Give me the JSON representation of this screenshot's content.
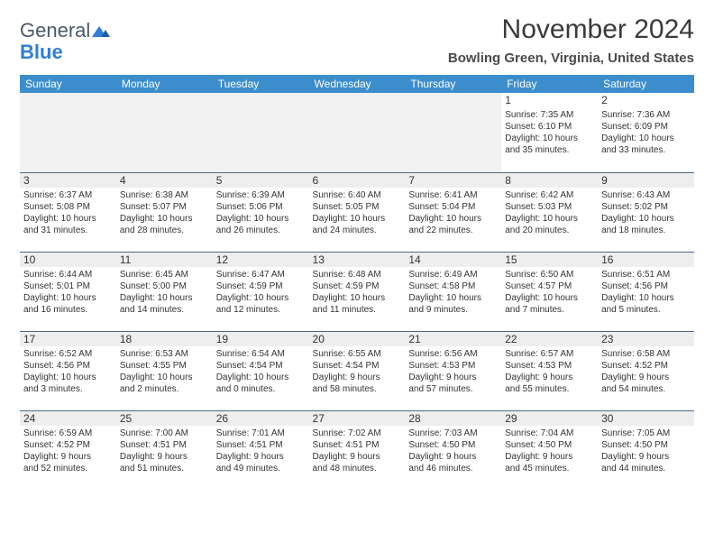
{
  "logo": {
    "word1": "General",
    "word2": "Blue"
  },
  "title": "November 2024",
  "location": "Bowling Green, Virginia, United States",
  "colors": {
    "header_bg": "#3c8dcc",
    "header_text": "#ffffff",
    "day_bg": "#eeeeee",
    "border": "#4a6a88",
    "logo_gray": "#4a5a6a",
    "logo_blue": "#2f7ed8"
  },
  "weekdays": [
    "Sunday",
    "Monday",
    "Tuesday",
    "Wednesday",
    "Thursday",
    "Friday",
    "Saturday"
  ],
  "weeks": [
    [
      null,
      null,
      null,
      null,
      null,
      {
        "d": "1",
        "sr": "Sunrise: 7:35 AM",
        "ss": "Sunset: 6:10 PM",
        "dl1": "Daylight: 10 hours",
        "dl2": "and 35 minutes."
      },
      {
        "d": "2",
        "sr": "Sunrise: 7:36 AM",
        "ss": "Sunset: 6:09 PM",
        "dl1": "Daylight: 10 hours",
        "dl2": "and 33 minutes."
      }
    ],
    [
      {
        "d": "3",
        "sr": "Sunrise: 6:37 AM",
        "ss": "Sunset: 5:08 PM",
        "dl1": "Daylight: 10 hours",
        "dl2": "and 31 minutes."
      },
      {
        "d": "4",
        "sr": "Sunrise: 6:38 AM",
        "ss": "Sunset: 5:07 PM",
        "dl1": "Daylight: 10 hours",
        "dl2": "and 28 minutes."
      },
      {
        "d": "5",
        "sr": "Sunrise: 6:39 AM",
        "ss": "Sunset: 5:06 PM",
        "dl1": "Daylight: 10 hours",
        "dl2": "and 26 minutes."
      },
      {
        "d": "6",
        "sr": "Sunrise: 6:40 AM",
        "ss": "Sunset: 5:05 PM",
        "dl1": "Daylight: 10 hours",
        "dl2": "and 24 minutes."
      },
      {
        "d": "7",
        "sr": "Sunrise: 6:41 AM",
        "ss": "Sunset: 5:04 PM",
        "dl1": "Daylight: 10 hours",
        "dl2": "and 22 minutes."
      },
      {
        "d": "8",
        "sr": "Sunrise: 6:42 AM",
        "ss": "Sunset: 5:03 PM",
        "dl1": "Daylight: 10 hours",
        "dl2": "and 20 minutes."
      },
      {
        "d": "9",
        "sr": "Sunrise: 6:43 AM",
        "ss": "Sunset: 5:02 PM",
        "dl1": "Daylight: 10 hours",
        "dl2": "and 18 minutes."
      }
    ],
    [
      {
        "d": "10",
        "sr": "Sunrise: 6:44 AM",
        "ss": "Sunset: 5:01 PM",
        "dl1": "Daylight: 10 hours",
        "dl2": "and 16 minutes."
      },
      {
        "d": "11",
        "sr": "Sunrise: 6:45 AM",
        "ss": "Sunset: 5:00 PM",
        "dl1": "Daylight: 10 hours",
        "dl2": "and 14 minutes."
      },
      {
        "d": "12",
        "sr": "Sunrise: 6:47 AM",
        "ss": "Sunset: 4:59 PM",
        "dl1": "Daylight: 10 hours",
        "dl2": "and 12 minutes."
      },
      {
        "d": "13",
        "sr": "Sunrise: 6:48 AM",
        "ss": "Sunset: 4:59 PM",
        "dl1": "Daylight: 10 hours",
        "dl2": "and 11 minutes."
      },
      {
        "d": "14",
        "sr": "Sunrise: 6:49 AM",
        "ss": "Sunset: 4:58 PM",
        "dl1": "Daylight: 10 hours",
        "dl2": "and 9 minutes."
      },
      {
        "d": "15",
        "sr": "Sunrise: 6:50 AM",
        "ss": "Sunset: 4:57 PM",
        "dl1": "Daylight: 10 hours",
        "dl2": "and 7 minutes."
      },
      {
        "d": "16",
        "sr": "Sunrise: 6:51 AM",
        "ss": "Sunset: 4:56 PM",
        "dl1": "Daylight: 10 hours",
        "dl2": "and 5 minutes."
      }
    ],
    [
      {
        "d": "17",
        "sr": "Sunrise: 6:52 AM",
        "ss": "Sunset: 4:56 PM",
        "dl1": "Daylight: 10 hours",
        "dl2": "and 3 minutes."
      },
      {
        "d": "18",
        "sr": "Sunrise: 6:53 AM",
        "ss": "Sunset: 4:55 PM",
        "dl1": "Daylight: 10 hours",
        "dl2": "and 2 minutes."
      },
      {
        "d": "19",
        "sr": "Sunrise: 6:54 AM",
        "ss": "Sunset: 4:54 PM",
        "dl1": "Daylight: 10 hours",
        "dl2": "and 0 minutes."
      },
      {
        "d": "20",
        "sr": "Sunrise: 6:55 AM",
        "ss": "Sunset: 4:54 PM",
        "dl1": "Daylight: 9 hours",
        "dl2": "and 58 minutes."
      },
      {
        "d": "21",
        "sr": "Sunrise: 6:56 AM",
        "ss": "Sunset: 4:53 PM",
        "dl1": "Daylight: 9 hours",
        "dl2": "and 57 minutes."
      },
      {
        "d": "22",
        "sr": "Sunrise: 6:57 AM",
        "ss": "Sunset: 4:53 PM",
        "dl1": "Daylight: 9 hours",
        "dl2": "and 55 minutes."
      },
      {
        "d": "23",
        "sr": "Sunrise: 6:58 AM",
        "ss": "Sunset: 4:52 PM",
        "dl1": "Daylight: 9 hours",
        "dl2": "and 54 minutes."
      }
    ],
    [
      {
        "d": "24",
        "sr": "Sunrise: 6:59 AM",
        "ss": "Sunset: 4:52 PM",
        "dl1": "Daylight: 9 hours",
        "dl2": "and 52 minutes."
      },
      {
        "d": "25",
        "sr": "Sunrise: 7:00 AM",
        "ss": "Sunset: 4:51 PM",
        "dl1": "Daylight: 9 hours",
        "dl2": "and 51 minutes."
      },
      {
        "d": "26",
        "sr": "Sunrise: 7:01 AM",
        "ss": "Sunset: 4:51 PM",
        "dl1": "Daylight: 9 hours",
        "dl2": "and 49 minutes."
      },
      {
        "d": "27",
        "sr": "Sunrise: 7:02 AM",
        "ss": "Sunset: 4:51 PM",
        "dl1": "Daylight: 9 hours",
        "dl2": "and 48 minutes."
      },
      {
        "d": "28",
        "sr": "Sunrise: 7:03 AM",
        "ss": "Sunset: 4:50 PM",
        "dl1": "Daylight: 9 hours",
        "dl2": "and 46 minutes."
      },
      {
        "d": "29",
        "sr": "Sunrise: 7:04 AM",
        "ss": "Sunset: 4:50 PM",
        "dl1": "Daylight: 9 hours",
        "dl2": "and 45 minutes."
      },
      {
        "d": "30",
        "sr": "Sunrise: 7:05 AM",
        "ss": "Sunset: 4:50 PM",
        "dl1": "Daylight: 9 hours",
        "dl2": "and 44 minutes."
      }
    ]
  ]
}
